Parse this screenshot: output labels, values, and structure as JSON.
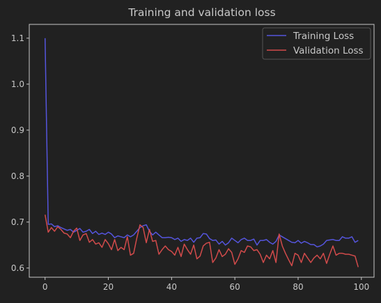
{
  "chart_data": {
    "type": "line",
    "title": "Training and validation loss",
    "xlabel": "",
    "ylabel": "",
    "xlim": [
      -5,
      104
    ],
    "ylim": [
      0.58,
      1.13
    ],
    "x_ticks": [
      0,
      20,
      40,
      60,
      80,
      100
    ],
    "y_ticks": [
      0.6,
      0.7,
      0.8,
      0.9,
      1.0,
      1.1
    ],
    "x_tick_labels": [
      "0",
      "20",
      "40",
      "60",
      "80",
      "100"
    ],
    "y_tick_labels": [
      "0.6",
      "0.7",
      "0.8",
      "0.9",
      "1.0",
      "1.1"
    ],
    "grid": false,
    "legend_position": "top-right",
    "colors": {
      "background": "#212121",
      "axes": "#c8c8c8",
      "text": "#c8c8c8"
    },
    "x": [
      0,
      1,
      2,
      3,
      4,
      5,
      6,
      7,
      8,
      9,
      10,
      11,
      12,
      13,
      14,
      15,
      16,
      17,
      18,
      19,
      20,
      21,
      22,
      23,
      24,
      25,
      26,
      27,
      28,
      29,
      30,
      31,
      32,
      33,
      34,
      35,
      36,
      37,
      38,
      39,
      40,
      41,
      42,
      43,
      44,
      45,
      46,
      47,
      48,
      49,
      50,
      51,
      52,
      53,
      54,
      55,
      56,
      57,
      58,
      59,
      60,
      61,
      62,
      63,
      64,
      65,
      66,
      67,
      68,
      69,
      70,
      71,
      72,
      73,
      74,
      75,
      76,
      77,
      78,
      79,
      80,
      81,
      82,
      83,
      84,
      85,
      86,
      87,
      88,
      89,
      90,
      91,
      92,
      93,
      94,
      95,
      96,
      97,
      98,
      99
    ],
    "series": [
      {
        "name": "Training Loss",
        "color": "#5555dd",
        "values": [
          1.1,
          0.695,
          0.696,
          0.69,
          0.692,
          0.688,
          0.685,
          0.682,
          0.684,
          0.678,
          0.682,
          0.686,
          0.678,
          0.68,
          0.684,
          0.675,
          0.68,
          0.673,
          0.676,
          0.673,
          0.678,
          0.674,
          0.666,
          0.67,
          0.668,
          0.666,
          0.672,
          0.668,
          0.672,
          0.68,
          0.688,
          0.692,
          0.694,
          0.68,
          0.672,
          0.678,
          0.672,
          0.666,
          0.666,
          0.667,
          0.666,
          0.662,
          0.665,
          0.658,
          0.662,
          0.66,
          0.665,
          0.656,
          0.665,
          0.666,
          0.675,
          0.674,
          0.664,
          0.66,
          0.661,
          0.652,
          0.658,
          0.65,
          0.655,
          0.665,
          0.66,
          0.655,
          0.662,
          0.665,
          0.66,
          0.66,
          0.663,
          0.65,
          0.66,
          0.66,
          0.662,
          0.656,
          0.652,
          0.658,
          0.672,
          0.668,
          0.664,
          0.66,
          0.656,
          0.655,
          0.66,
          0.654,
          0.658,
          0.655,
          0.651,
          0.651,
          0.646,
          0.648,
          0.652,
          0.66,
          0.661,
          0.662,
          0.66,
          0.66,
          0.668,
          0.665,
          0.665,
          0.668,
          0.656,
          0.66
        ]
      },
      {
        "name": "Validation Loss",
        "color": "#d24b4b",
        "values": [
          0.716,
          0.678,
          0.688,
          0.68,
          0.69,
          0.684,
          0.676,
          0.674,
          0.666,
          0.68,
          0.687,
          0.66,
          0.672,
          0.675,
          0.656,
          0.662,
          0.652,
          0.655,
          0.645,
          0.662,
          0.653,
          0.64,
          0.662,
          0.638,
          0.645,
          0.64,
          0.668,
          0.628,
          0.632,
          0.665,
          0.694,
          0.688,
          0.655,
          0.684,
          0.658,
          0.66,
          0.63,
          0.64,
          0.648,
          0.64,
          0.636,
          0.628,
          0.645,
          0.625,
          0.652,
          0.64,
          0.63,
          0.65,
          0.62,
          0.626,
          0.648,
          0.654,
          0.656,
          0.612,
          0.622,
          0.64,
          0.625,
          0.63,
          0.642,
          0.634,
          0.608,
          0.62,
          0.638,
          0.634,
          0.648,
          0.646,
          0.638,
          0.64,
          0.63,
          0.612,
          0.628,
          0.62,
          0.638,
          0.612,
          0.674,
          0.648,
          0.632,
          0.618,
          0.605,
          0.632,
          0.628,
          0.612,
          0.632,
          0.622,
          0.612,
          0.622,
          0.628,
          0.62,
          0.632,
          0.61,
          0.63,
          0.648,
          0.628,
          0.632,
          0.632,
          0.63,
          0.63,
          0.628,
          0.626,
          0.602
        ]
      }
    ]
  }
}
